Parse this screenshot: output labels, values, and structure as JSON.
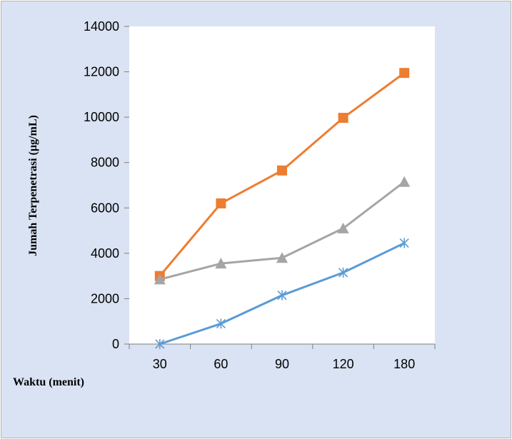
{
  "colors": {
    "background": "#dae3f3",
    "plot_area": "#ffffff",
    "axis": "#7f7f7f"
  },
  "chart_data": {
    "type": "line",
    "title": "",
    "xlabel": "Waktu (menit)",
    "ylabel": "Jumah Terpenetrasi (µg/mL)",
    "categories": [
      "30",
      "60",
      "90",
      "120",
      "180"
    ],
    "ylim": [
      0,
      14000
    ],
    "yticks": [
      0,
      2000,
      4000,
      6000,
      8000,
      10000,
      12000,
      14000
    ],
    "grid": false,
    "legend": "none",
    "series": [
      {
        "color": "#ed7d31",
        "marker": "square",
        "values": [
          3000,
          6200,
          7650,
          9970,
          11950
        ]
      },
      {
        "color": "#a5a5a5",
        "marker": "triangle",
        "values": [
          2850,
          3550,
          3800,
          5100,
          7150
        ]
      },
      {
        "color": "#5b9bd5",
        "marker": "star",
        "values": [
          0,
          900,
          2150,
          3150,
          4450
        ]
      }
    ]
  }
}
